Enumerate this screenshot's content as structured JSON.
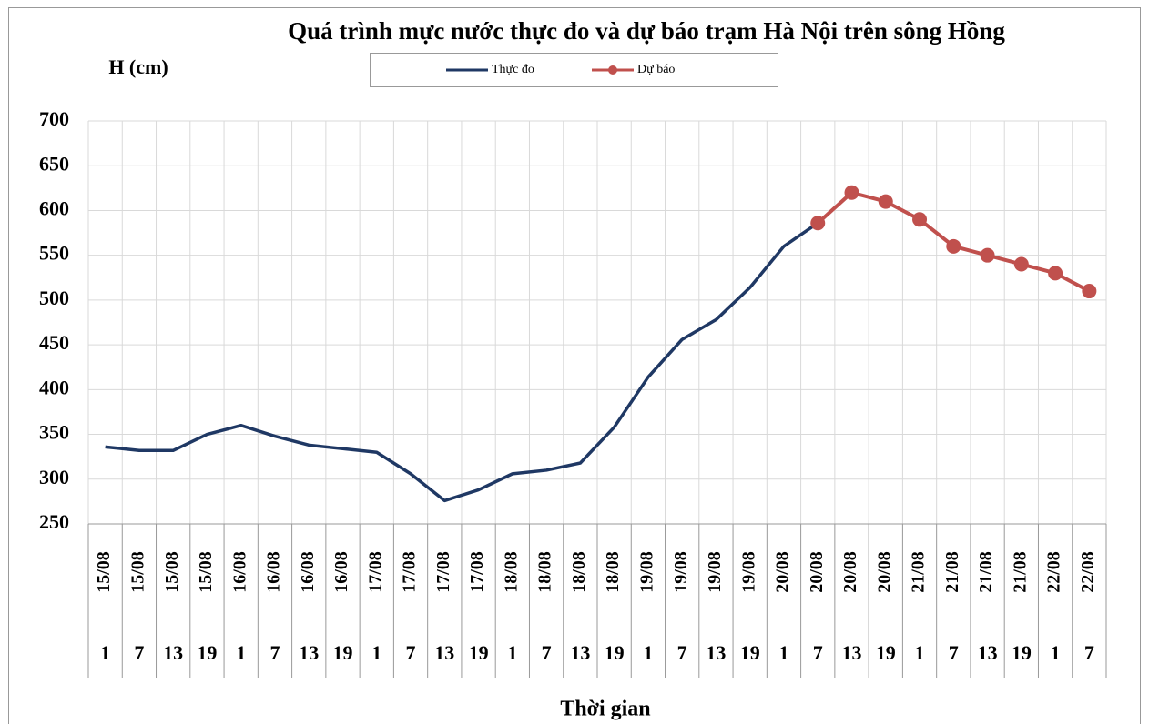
{
  "chart_data": {
    "type": "line",
    "title": "Quá trình mực nước thực đo và dự báo trạm Hà Nội trên sông Hồng",
    "y_label": "H (cm)",
    "x_label": "Thời gian",
    "categories": [
      "15/08",
      "15/08",
      "15/08",
      "15/08",
      "16/08",
      "16/08",
      "16/08",
      "16/08",
      "17/08",
      "17/08",
      "17/08",
      "17/08",
      "18/08",
      "18/08",
      "18/08",
      "18/08",
      "19/08",
      "19/08",
      "19/08",
      "19/08",
      "20/08",
      "20/08",
      "20/08",
      "20/08",
      "21/08",
      "21/08",
      "21/08",
      "21/08",
      "22/08",
      "22/08"
    ],
    "subcategories": [
      "1",
      "7",
      "13",
      "19",
      "1",
      "7",
      "13",
      "19",
      "1",
      "7",
      "13",
      "19",
      "1",
      "7",
      "13",
      "19",
      "1",
      "7",
      "13",
      "19",
      "1",
      "7",
      "13",
      "19",
      "1",
      "7",
      "13",
      "19",
      "1",
      "7"
    ],
    "series": [
      {
        "name": "Thực đo",
        "color": "#1f3864",
        "marker": false,
        "values": [
          336,
          332,
          332,
          350,
          360,
          348,
          338,
          334,
          330,
          306,
          276,
          288,
          306,
          310,
          318,
          358,
          414,
          456,
          478,
          514,
          560,
          586,
          null,
          null,
          null,
          null,
          null,
          null,
          null,
          null
        ]
      },
      {
        "name": "Dự báo",
        "color": "#c0504d",
        "marker": true,
        "values": [
          null,
          null,
          null,
          null,
          null,
          null,
          null,
          null,
          null,
          null,
          null,
          null,
          null,
          null,
          null,
          null,
          null,
          null,
          null,
          null,
          null,
          586,
          620,
          610,
          590,
          560,
          550,
          540,
          530,
          510
        ]
      }
    ],
    "ylim": [
      250,
      700
    ],
    "yticks": [
      250,
      300,
      350,
      400,
      450,
      500,
      550,
      600,
      650,
      700
    ],
    "grid": true
  }
}
